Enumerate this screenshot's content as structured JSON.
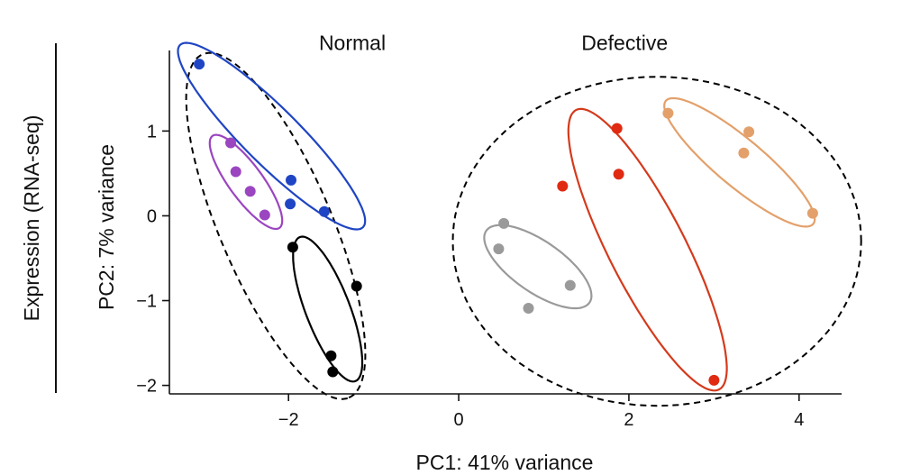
{
  "chart_data": {
    "type": "scatter",
    "title": "",
    "xlabel": "PC1: 41% variance",
    "ylabel": "PC2: 7% variance",
    "side_label": "Expression (RNA-seq)",
    "xlim": [
      -3.4,
      4.5
    ],
    "ylim": [
      -2.1,
      1.95
    ],
    "xticks": [
      -2,
      0,
      2,
      4
    ],
    "yticks": [
      1,
      0,
      -1,
      -2
    ],
    "xtick_labels": [
      "−2",
      "0",
      "2",
      "4"
    ],
    "ytick_labels": [
      "1",
      "0",
      "−1",
      "−2"
    ],
    "group_labels": [
      {
        "text": "Normal",
        "x": -1.25,
        "y": 2.0
      },
      {
        "text": "Defective",
        "x": 1.95,
        "y": 2.0
      }
    ],
    "series": [
      {
        "name": "blue",
        "color": "#1f45c4",
        "points": [
          [
            -3.05,
            1.79
          ],
          [
            -1.97,
            0.42
          ],
          [
            -1.98,
            0.14
          ],
          [
            -1.58,
            0.05
          ]
        ],
        "ellipse": {
          "cx": -2.2,
          "cy": 0.94,
          "rx": 1.52,
          "ry": 0.33,
          "angle_deg": -45,
          "stroke": "#1f45c4"
        }
      },
      {
        "name": "purple",
        "color": "#9b45c0",
        "points": [
          [
            -2.68,
            0.86
          ],
          [
            -2.62,
            0.52
          ],
          [
            -2.45,
            0.29
          ],
          [
            -2.28,
            0.01
          ]
        ],
        "ellipse": {
          "cx": -2.5,
          "cy": 0.4,
          "rx": 0.67,
          "ry": 0.2,
          "angle_deg": -54,
          "stroke": "#9b45c0"
        }
      },
      {
        "name": "black",
        "color": "#000000",
        "points": [
          [
            -1.95,
            -0.37
          ],
          [
            -1.2,
            -0.83
          ],
          [
            -1.5,
            -1.65
          ],
          [
            -1.48,
            -1.84
          ]
        ],
        "ellipse": {
          "cx": -1.54,
          "cy": -1.1,
          "rx": 0.91,
          "ry": 0.26,
          "angle_deg": -69,
          "stroke": "#000000"
        }
      },
      {
        "name": "gray",
        "color": "#9a9a9a",
        "points": [
          [
            0.53,
            -0.09
          ],
          [
            0.47,
            -0.39
          ],
          [
            0.82,
            -1.09
          ],
          [
            1.31,
            -0.82
          ]
        ],
        "ellipse": {
          "cx": 0.93,
          "cy": -0.6,
          "rx": 0.74,
          "ry": 0.3,
          "angle_deg": -35,
          "stroke": "#9a9a9a"
        }
      },
      {
        "name": "red",
        "color": "#e02a12",
        "points": [
          [
            1.22,
            0.35
          ],
          [
            1.86,
            1.03
          ],
          [
            1.88,
            0.49
          ],
          [
            3.0,
            -1.94
          ]
        ],
        "ellipse": {
          "cx": 2.22,
          "cy": -0.4,
          "rx": 1.85,
          "ry": 0.45,
          "angle_deg": -63,
          "stroke": "#d43a1c"
        }
      },
      {
        "name": "orange",
        "color": "#e3a06a",
        "points": [
          [
            2.46,
            1.21
          ],
          [
            3.41,
            0.99
          ],
          [
            3.35,
            0.74
          ],
          [
            4.16,
            0.03
          ]
        ],
        "ellipse": {
          "cx": 3.3,
          "cy": 0.63,
          "rx": 1.13,
          "ry": 0.28,
          "angle_deg": -40,
          "stroke": "#e3a06a"
        }
      }
    ],
    "outer_groups": [
      {
        "name": "Normal",
        "cx": -2.15,
        "cy": -0.12,
        "rx": 2.2,
        "ry": 0.66,
        "angle_deg": -67
      },
      {
        "name": "Defective",
        "cx": 2.33,
        "cy": -0.3,
        "rx": 2.4,
        "ry": 1.94,
        "angle_deg": 0
      }
    ]
  }
}
